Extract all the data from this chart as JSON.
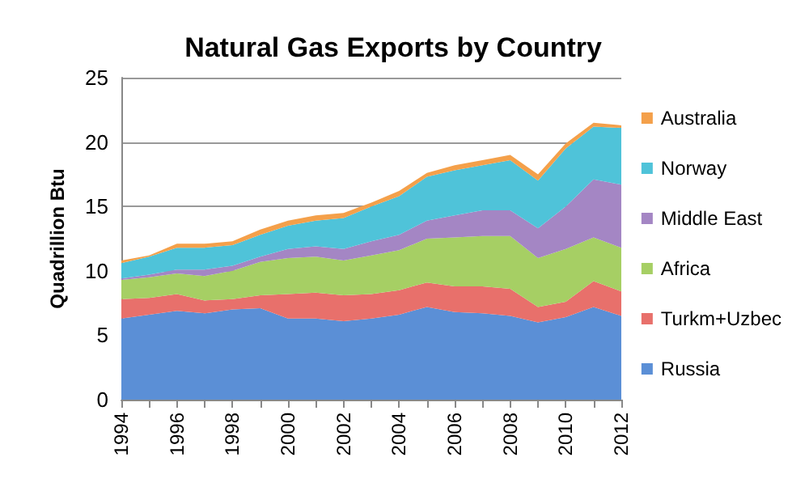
{
  "chart_data": {
    "type": "area",
    "title": "Natural Gas Exports by Country",
    "ylabel": "Quadrillion Btu",
    "stacked": true,
    "grid": "y",
    "legend": "right",
    "categories": [
      "1994",
      null,
      "1996",
      null,
      "1998",
      null,
      "2000",
      null,
      "2002",
      null,
      "2004",
      null,
      "2006",
      null,
      "2008",
      null,
      "2010",
      null,
      "2012"
    ],
    "ylim": [
      0,
      25
    ],
    "yticks": [
      0,
      5,
      10,
      15,
      20,
      25
    ],
    "series": [
      {
        "name": "Russia",
        "color": "#5b8fd6",
        "values": [
          6.3,
          6.6,
          6.9,
          6.7,
          7.0,
          7.1,
          6.3,
          6.3,
          6.1,
          6.3,
          6.6,
          7.2,
          6.8,
          6.7,
          6.5,
          6.0,
          6.4,
          7.2,
          6.5
        ]
      },
      {
        "name": "Turkm+Uzbec",
        "color": "#e8706b",
        "values": [
          1.5,
          1.3,
          1.3,
          1.0,
          0.8,
          1.0,
          1.9,
          2.0,
          2.0,
          1.9,
          1.9,
          1.9,
          2.0,
          2.1,
          2.1,
          1.2,
          1.2,
          2.0,
          1.9
        ]
      },
      {
        "name": "Africa",
        "color": "#a6cf64",
        "values": [
          1.5,
          1.6,
          1.6,
          1.9,
          2.2,
          2.6,
          2.8,
          2.8,
          2.7,
          3.0,
          3.1,
          3.4,
          3.8,
          3.9,
          4.1,
          3.8,
          4.1,
          3.4,
          3.4
        ]
      },
      {
        "name": "Middle East",
        "color": "#a486c4",
        "values": [
          0.1,
          0.2,
          0.3,
          0.5,
          0.4,
          0.4,
          0.7,
          0.8,
          0.9,
          1.1,
          1.2,
          1.4,
          1.7,
          2.0,
          2.0,
          2.3,
          3.3,
          4.5,
          4.9
        ]
      },
      {
        "name": "Norway",
        "color": "#4fc3d9",
        "values": [
          1.2,
          1.4,
          1.7,
          1.7,
          1.6,
          1.7,
          1.8,
          2.0,
          2.4,
          2.7,
          3.0,
          3.4,
          3.5,
          3.5,
          3.9,
          3.7,
          4.5,
          4.1,
          4.4
        ]
      },
      {
        "name": "Australia",
        "color": "#f4a04a",
        "values": [
          0.2,
          0.1,
          0.3,
          0.3,
          0.3,
          0.4,
          0.4,
          0.4,
          0.4,
          0.3,
          0.4,
          0.3,
          0.4,
          0.4,
          0.4,
          0.5,
          0.4,
          0.3,
          0.2
        ]
      }
    ]
  }
}
